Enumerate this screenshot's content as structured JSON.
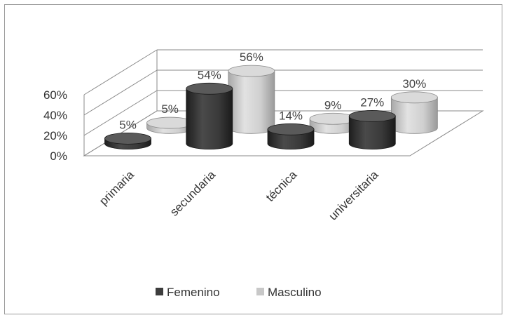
{
  "chart_data": {
    "type": "bar",
    "style": "3d-cylinder",
    "categories": [
      "primaria",
      "secundaria",
      "técnica",
      "universitaria"
    ],
    "series": [
      {
        "name": "Femenino",
        "values": [
          5,
          54,
          14,
          27
        ],
        "labels": [
          "5%",
          "54%",
          "14%",
          "27%"
        ],
        "color": "#3d3d3d"
      },
      {
        "name": "Masculino",
        "values": [
          5,
          56,
          9,
          30
        ],
        "labels": [
          "5%",
          "56%",
          "9%",
          "30%"
        ],
        "color": "#c8c8c8"
      }
    ],
    "yticks": [
      "0%",
      "20%",
      "40%",
      "60%"
    ],
    "ylim": [
      0,
      60
    ],
    "grid": true,
    "legend_position": "bottom"
  }
}
